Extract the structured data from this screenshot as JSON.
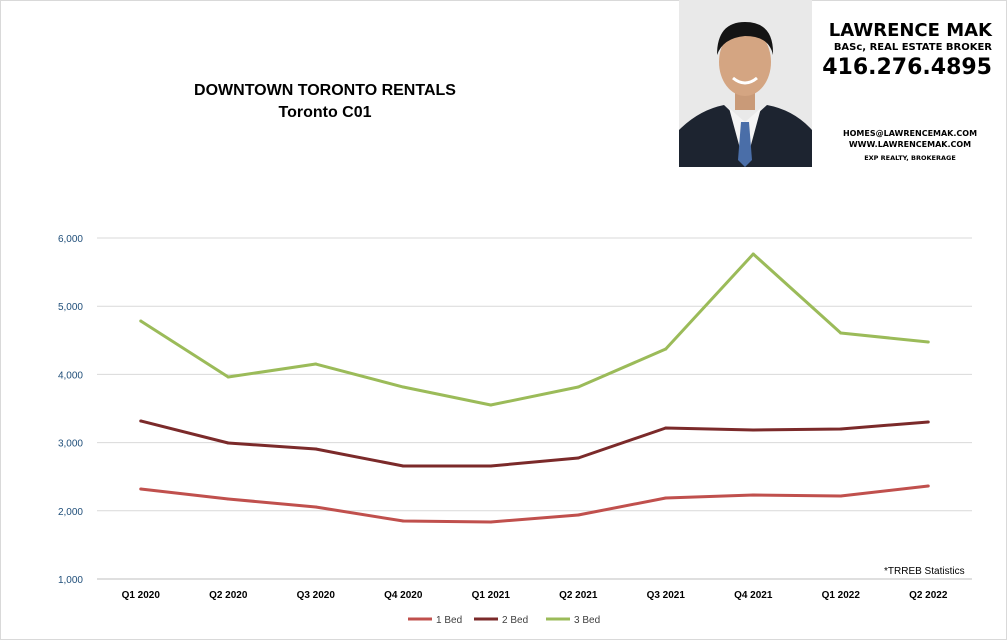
{
  "header": {
    "title": "DOWNTOWN TORONTO RENTALS",
    "subtitle": "Toronto C01"
  },
  "contact": {
    "name": "LAWRENCE MAK",
    "role": "BASc, REAL ESTATE BROKER",
    "phone": "416.276.4895",
    "email": "HOMES@LAWRENCEMAK.COM",
    "website": "WWW.LAWRENCEMAK.COM",
    "brokerage": "EXP REALTY, BROKERAGE"
  },
  "footnote": "*TRREB Statistics",
  "chart_data": {
    "type": "line",
    "title": "DOWNTOWN TORONTO RENTALS",
    "subtitle": "Toronto C01",
    "categories": [
      "Q1 2020",
      "Q2 2020",
      "Q3 2020",
      "Q4 2020",
      "Q1 2021",
      "Q2 2021",
      "Q3 2021",
      "Q4 2021",
      "Q1 2022",
      "Q2 2022"
    ],
    "ylim": [
      1000,
      6000
    ],
    "yticks": [
      1000,
      2000,
      3000,
      4000,
      5000,
      6000
    ],
    "ytick_labels": [
      "1,000",
      "2,000",
      "3,000",
      "4,000",
      "5,000",
      "6,000"
    ],
    "grid": true,
    "legend": "bottom",
    "series": [
      {
        "name": "1 Bed",
        "color": "#c0504d",
        "values": [
          2320,
          2173,
          2056,
          1850,
          1836,
          1938,
          2188,
          2232,
          2217,
          2364
        ]
      },
      {
        "name": "2 Bed",
        "color": "#7b2a2a",
        "values": [
          3317,
          2994,
          2906,
          2657,
          2657,
          2774,
          3214,
          3185,
          3200,
          3302
        ]
      },
      {
        "name": "3 Bed",
        "color": "#9bbb59",
        "values": [
          4783,
          3962,
          4152,
          3815,
          3551,
          3815,
          4372,
          5765,
          4607,
          4475
        ]
      }
    ]
  }
}
